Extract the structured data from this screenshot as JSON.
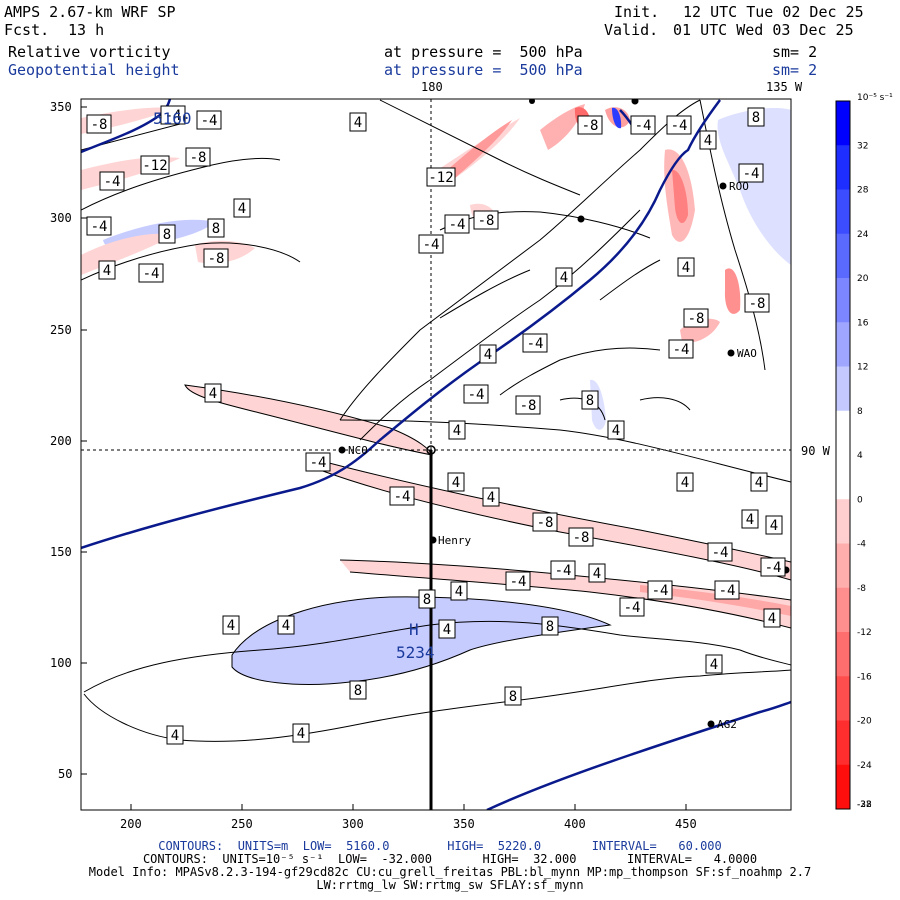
{
  "header": {
    "model": "AMPS 2.67-km WRF SP",
    "fcst_label": "Fcst.",
    "fcst_value": "13 h",
    "init_label": "Init.",
    "init_value": "12 UTC Tue 02 Dec 25",
    "valid_label": "Valid.",
    "valid_value": "01 UTC Wed 03 Dec 25",
    "field1": "Relative vorticity",
    "field2": "Geopotential height",
    "pressure1": "at pressure =  500 hPa",
    "pressure2": "at pressure =  500 hPa",
    "sm1": "sm= 2",
    "sm2": "sm= 2"
  },
  "map": {
    "lon_top_left": "180",
    "lon_top_right": "135 W",
    "lon_right": "90 W",
    "stations": [
      "NCO",
      "Henry",
      "AG2",
      "ROO",
      "WAO"
    ],
    "high_label": "H",
    "high_value": "5234",
    "height_label": "5160",
    "xticks": [
      "200",
      "250",
      "300",
      "350",
      "400",
      "450"
    ],
    "yticks": [
      "350",
      "300",
      "250",
      "200",
      "150",
      "100",
      "50"
    ],
    "contour_labels": [
      "-8",
      "-4",
      "-4",
      "-8",
      "-4",
      "-12",
      "4",
      "4",
      "-4",
      "8",
      "8",
      "4",
      "-8",
      "-4",
      "4",
      "-4",
      "-12",
      "-4",
      "-8",
      "-4",
      "4",
      "-4",
      "8",
      "-8",
      "-4",
      "4",
      "4",
      "4",
      "4",
      "-8",
      "-8",
      "-4",
      "4",
      "-8",
      "4",
      "-4",
      "8",
      "-4",
      "4",
      "4",
      "-4",
      "4",
      "4",
      "-4",
      "-4",
      "4",
      "4",
      "-4",
      "-4",
      "4",
      "-4",
      "-4",
      "-4",
      "-8",
      "-8",
      "4",
      "-4",
      "4",
      "4",
      "4",
      "8",
      "4",
      "8",
      "8",
      "4",
      "4",
      "8",
      "4",
      "4",
      "4",
      "4",
      "4",
      "4"
    ]
  },
  "colorbar": {
    "unit": "10⁻⁵ s⁻¹",
    "labels": [
      "32",
      "28",
      "24",
      "20",
      "16",
      "12",
      "8",
      "4",
      "0",
      "-4",
      "-8",
      "-12",
      "-16",
      "-20",
      "-24",
      "-28",
      "-32"
    ],
    "colors": [
      "#0000ff",
      "#1e2eff",
      "#3c4cff",
      "#5a6aff",
      "#7c86ff",
      "#9ea6ff",
      "#c4caff",
      "#ffffff",
      "#ffffff",
      "#ffcfcf",
      "#ffaeae",
      "#ff8e8e",
      "#ff6e6e",
      "#ff4e4e",
      "#ff2e2e",
      "#ff0e0e"
    ]
  },
  "footer": {
    "line1": "CONTOURS:  UNITS=m  LOW=  5160.0        HIGH=  5220.0       INTERVAL=   60.000",
    "line2": "CONTOURS:  UNITS=10⁻⁵ s⁻¹  LOW=  -32.000       HIGH=  32.000       INTERVAL=   4.0000",
    "line3": "Model Info: MPASv8.2.3-194-gf29cd82c CU:cu_grell_freitas PBL:bl_mynn MP:mp_thompson SF:sf_noahmp 2.7",
    "line4": "LW:rrtmg_lw SW:rrtmg_sw SFLAY:sf_mynn"
  }
}
